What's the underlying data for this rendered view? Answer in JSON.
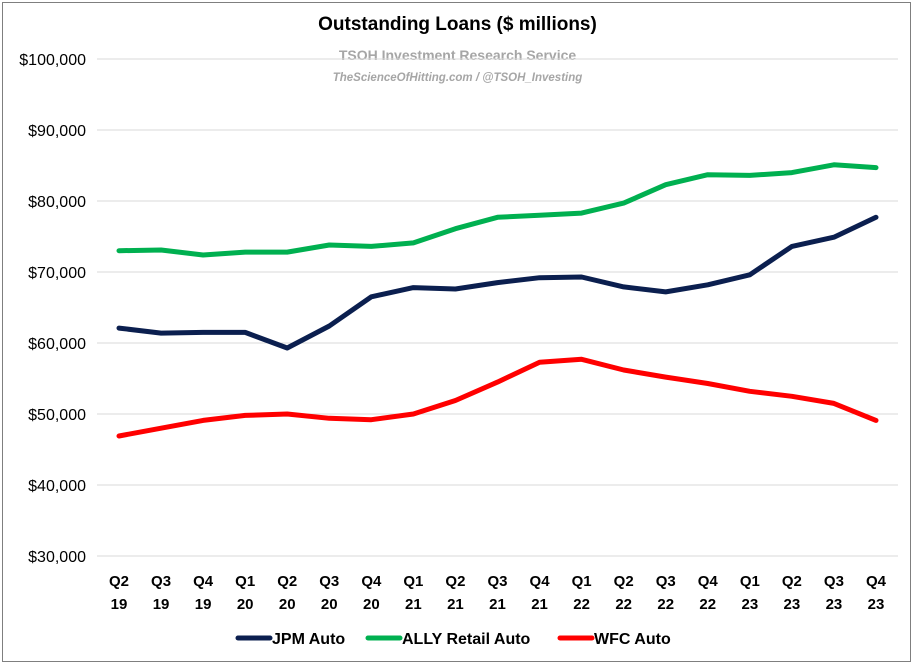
{
  "chart_data": {
    "type": "line",
    "title": "Outstanding Loans ($ millions)",
    "subtitle": "TSOH Investment Research Service",
    "watermark": "TheScienceOfHitting.com / @TSOH_Investing",
    "categories": [
      [
        "Q2",
        "19"
      ],
      [
        "Q3",
        "19"
      ],
      [
        "Q4",
        "19"
      ],
      [
        "Q1",
        "20"
      ],
      [
        "Q2",
        "20"
      ],
      [
        "Q3",
        "20"
      ],
      [
        "Q4",
        "20"
      ],
      [
        "Q1",
        "21"
      ],
      [
        "Q2",
        "21"
      ],
      [
        "Q3",
        "21"
      ],
      [
        "Q4",
        "21"
      ],
      [
        "Q1",
        "22"
      ],
      [
        "Q2",
        "22"
      ],
      [
        "Q3",
        "22"
      ],
      [
        "Q4",
        "22"
      ],
      [
        "Q1",
        "23"
      ],
      [
        "Q2",
        "23"
      ],
      [
        "Q3",
        "23"
      ],
      [
        "Q4",
        "23"
      ]
    ],
    "ylim": [
      30000,
      100000
    ],
    "yticks": [
      30000,
      40000,
      50000,
      60000,
      70000,
      80000,
      90000,
      100000
    ],
    "ytick_labels": [
      "$30,000",
      "$40,000",
      "$50,000",
      "$60,000",
      "$70,000",
      "$80,000",
      "$90,000",
      "$100,000"
    ],
    "grid": true,
    "legend_position": "bottom",
    "series": [
      {
        "name": "JPM Auto",
        "color": "#0b1f4f",
        "values": [
          62100,
          61400,
          61500,
          61500,
          59300,
          62400,
          66500,
          67800,
          67600,
          68500,
          69200,
          69300,
          67900,
          67200,
          68200,
          69600,
          73600,
          74900,
          77700
        ]
      },
      {
        "name": "ALLY Retail Auto",
        "color": "#00b050",
        "values": [
          73000,
          73100,
          72400,
          72800,
          72800,
          73800,
          73600,
          74100,
          76100,
          77700,
          78000,
          78300,
          79700,
          82300,
          83700,
          83600,
          84000,
          85100,
          84700
        ]
      },
      {
        "name": "WFC Auto",
        "color": "#ff0000",
        "values": [
          46900,
          48000,
          49100,
          49800,
          50000,
          49400,
          49200,
          50000,
          51900,
          54500,
          57300,
          57700,
          56200,
          55200,
          54300,
          53200,
          52500,
          51500,
          49100
        ]
      }
    ]
  }
}
